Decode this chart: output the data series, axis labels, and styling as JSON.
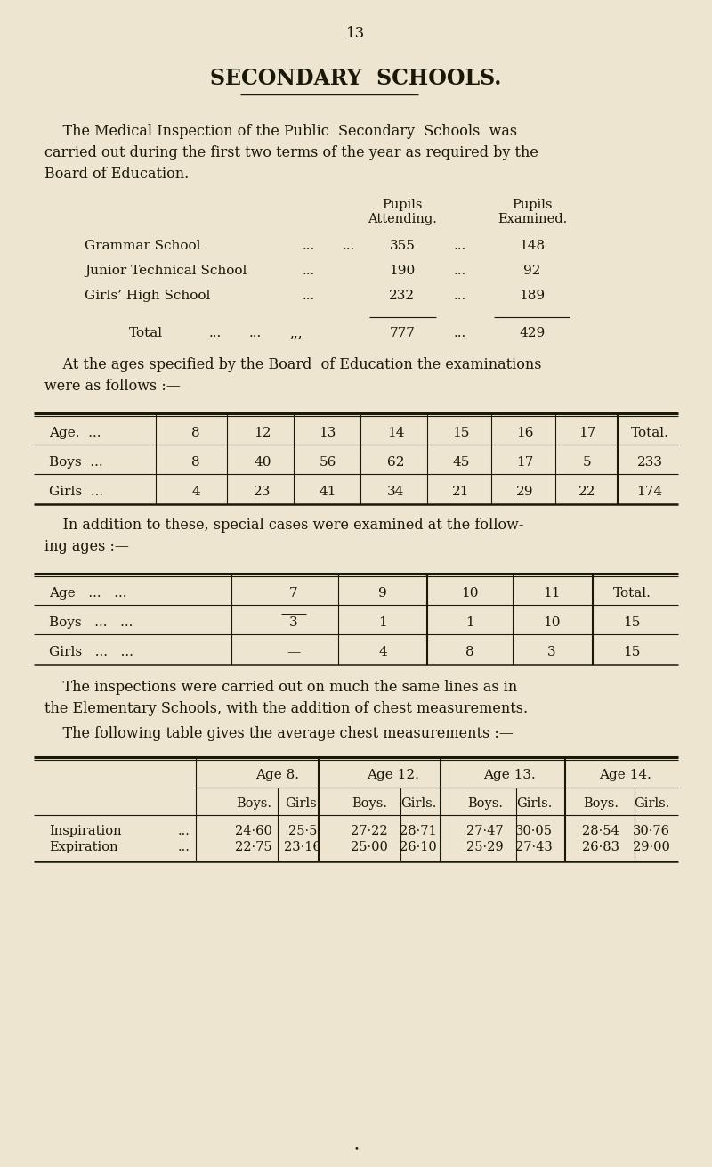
{
  "bg_color": "#ede5d0",
  "text_color": "#1a1808",
  "page_number": "13",
  "title": "SECONDARY  SCHOOLS.",
  "para1_lines": [
    "    The Medical Inspection of the Public  Secondary  Schools  was",
    "carried out during the first two terms of the year as required by the",
    "Board of Education."
  ],
  "pupils_header1": "Pupils",
  "pupils_attending": "Attending.",
  "pupils_header2": "Pupils",
  "pupils_examined": "Examined.",
  "schools": [
    "Grammar School",
    "Junior Technical School",
    "Girls’ High School"
  ],
  "dots1": [
    "...   ...",
    "...",
    "...   ..."
  ],
  "attending": [
    "355",
    "190",
    "232"
  ],
  "dots2": [
    "...",
    "...",
    "..."
  ],
  "examined": [
    "148",
    "92",
    "189"
  ],
  "total_label": "Total",
  "total_dots1": "...   ...   ,,,",
  "total_attending": "777",
  "total_dots2": "...",
  "total_examined": "429",
  "para2_lines": [
    "    At the ages specified by the Board  of Education the examinations",
    "were as follows :—"
  ],
  "table1_ages": [
    "8",
    "12",
    "13",
    "14",
    "15",
    "16",
    "17",
    "Total."
  ],
  "table1_boys": [
    "8",
    "40",
    "56",
    "62",
    "45",
    "17",
    "5",
    "233"
  ],
  "table1_girls": [
    "4",
    "23",
    "41",
    "34",
    "21",
    "29",
    "22",
    "174"
  ],
  "para3_lines": [
    "    In addition to these, special cases were examined at the follow-",
    "ing ages :—"
  ],
  "table2_ages": [
    "7",
    "9",
    "10",
    "11",
    "Total."
  ],
  "table2_boys": [
    "3",
    "1",
    "1",
    "10",
    "15"
  ],
  "table2_girls": [
    "—",
    "4",
    "8",
    "3",
    "15"
  ],
  "para4_lines": [
    "    The inspections were carried out on much the same lines as in",
    "the Elementary Schools, with the addition of chest measurements."
  ],
  "para5": "    The following table gives the average chest measurements :—",
  "chest_age_headers": [
    "Age 8.",
    "Age 12.",
    "Age 13.",
    "Age 14."
  ],
  "chest_sub_headers": [
    "Boys.",
    "Girls.",
    "Boys.",
    "Girls.",
    "Boys.",
    "Girls.",
    "Boys.",
    "Girls."
  ],
  "inspiration_vals": [
    "24·60",
    "25·5",
    "27·22",
    "28·71",
    "27·47",
    "30·05",
    "28·54",
    "30·76"
  ],
  "expiration_vals": [
    "22·75",
    "23·16",
    "25·00",
    "26·10",
    "25·29",
    "27·43",
    "26·83",
    "29·00"
  ]
}
